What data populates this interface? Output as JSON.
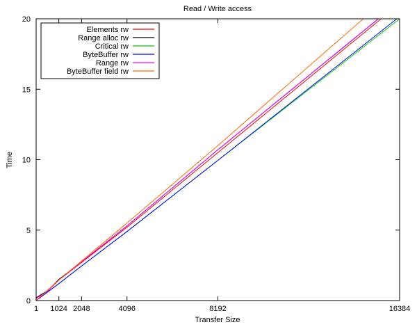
{
  "chart_data": {
    "type": "line",
    "title": "Read / Write access",
    "xlabel": "Transfer Size",
    "ylabel": "Time",
    "xlim": [
      1,
      16384
    ],
    "ylim": [
      0,
      20
    ],
    "x_ticks": [
      1,
      1024,
      2048,
      4096,
      8192,
      16384
    ],
    "x_tick_labels": [
      "1",
      "1024",
      "2048",
      "4096",
      "8192",
      "16384"
    ],
    "y_ticks": [
      0,
      5,
      10,
      15,
      20
    ],
    "y_tick_labels": [
      "0",
      "5",
      "10",
      "15",
      "20"
    ],
    "legend_position": "top-left",
    "grid": false,
    "series": [
      {
        "name": "Elements rw",
        "color": "#ff0000",
        "x": [
          1,
          1024,
          2048,
          4096,
          8192,
          15550
        ],
        "y": [
          0,
          1.45,
          2.7,
          5.2,
          10.5,
          20
        ]
      },
      {
        "name": "Range alloc rw",
        "color": "#000000",
        "x": [
          1,
          512,
          1024,
          2048,
          4096,
          8192,
          15430
        ],
        "y": [
          0.2,
          0.7,
          1.5,
          2.75,
          5.3,
          10.7,
          20
        ]
      },
      {
        "name": "Critical rw",
        "color": "#00cc00",
        "x": [
          1,
          1024,
          2048,
          4096,
          8192,
          16384
        ],
        "y": [
          0,
          1.2,
          2.45,
          4.9,
          9.95,
          20
        ]
      },
      {
        "name": "ByteBuffer rw",
        "color": "#0000ff",
        "x": [
          1,
          1024,
          2048,
          4096,
          8192,
          16260
        ],
        "y": [
          0,
          1.2,
          2.45,
          4.9,
          9.95,
          20
        ]
      },
      {
        "name": "Range rw",
        "color": "#ff00ff",
        "x": [
          1,
          512,
          1024,
          2048,
          4096,
          8192,
          15420
        ],
        "y": [
          0.15,
          0.65,
          1.45,
          2.75,
          5.3,
          10.7,
          20
        ]
      },
      {
        "name": "ByteBuffer field rw",
        "color": "#ff6600",
        "x": [
          1,
          1024,
          2048,
          4096,
          8192,
          14750
        ],
        "y": [
          0,
          1.45,
          2.8,
          5.5,
          11,
          20
        ]
      }
    ]
  }
}
